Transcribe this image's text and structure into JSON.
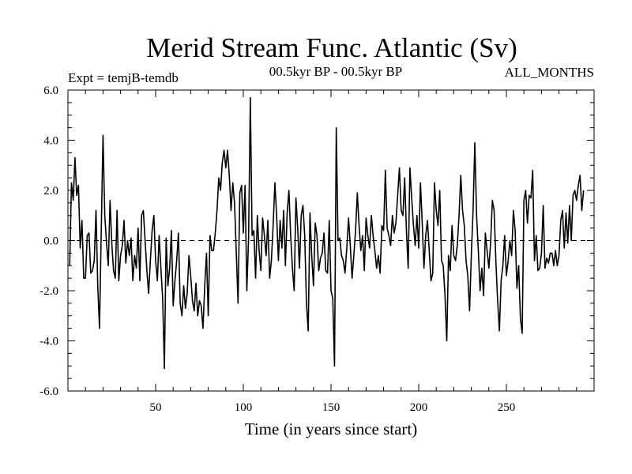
{
  "chart_data": {
    "type": "line",
    "title": "Merid Stream Func. Atlantic (Sv)",
    "subtitle_left": "Expt = temjB-temdb",
    "subtitle_center": "00.5kyr BP - 00.5kyr BP",
    "subtitle_right": "ALL_MONTHS",
    "xlabel": "Time (in years since start)",
    "ylabel": "",
    "xlim": [
      0,
      300
    ],
    "ylim": [
      -6,
      6
    ],
    "x_ticks": [
      50,
      100,
      150,
      200,
      250
    ],
    "x_tick_labels": [
      "50",
      "100",
      "150",
      "200",
      "250"
    ],
    "y_ticks": [
      -6,
      -4,
      -2,
      0,
      2,
      4,
      6
    ],
    "y_tick_labels": [
      "-6.0",
      "-4.0",
      "-2.0",
      "0.0",
      "2.0",
      "4.0",
      "6.0"
    ],
    "zero_line": true,
    "series": [
      {
        "name": "Merid Stream Func.",
        "x_start": 1,
        "x_step": 1,
        "values": [
          -1.0,
          2.3,
          1.6,
          3.3,
          1.8,
          2.2,
          -0.3,
          0.8,
          -1.5,
          -1.5,
          0.2,
          0.3,
          -1.3,
          -1.2,
          -0.8,
          1.2,
          -1.8,
          -3.5,
          0.4,
          4.2,
          1.0,
          -0.1,
          -1.0,
          1.6,
          -0.1,
          -1.2,
          -1.5,
          1.2,
          -1.6,
          -0.6,
          -0.2,
          0.8,
          -0.9,
          0.0,
          -0.6,
          0.1,
          -1.6,
          -0.6,
          -1.1,
          0.5,
          -1.6,
          1.0,
          1.2,
          0.0,
          -1.2,
          -2.1,
          -0.8,
          0.4,
          1.0,
          -0.8,
          -1.6,
          0.2,
          -1.1,
          -2.3,
          -5.1,
          0.1,
          -1.8,
          -1.1,
          0.4,
          -2.6,
          -1.6,
          -0.8,
          0.3,
          -2.5,
          -3.0,
          -1.8,
          -2.7,
          -2.1,
          -0.6,
          -1.4,
          -2.4,
          -2.8,
          -1.7,
          -3.0,
          -2.4,
          -2.6,
          -3.5,
          -1.8,
          -0.5,
          -3.0,
          0.2,
          -0.4,
          -0.4,
          0.3,
          1.2,
          2.5,
          2.0,
          3.1,
          3.6,
          2.9,
          3.6,
          2.6,
          1.2,
          2.3,
          1.5,
          -0.5,
          -2.5,
          1.9,
          2.2,
          0.3,
          2.2,
          -2.0,
          0.1,
          5.7,
          0.2,
          0.4,
          -1.5,
          1.0,
          -0.4,
          -1.2,
          0.9,
          0.2,
          -0.6,
          0.8,
          -1.5,
          -0.8,
          0.6,
          2.3,
          1.0,
          -0.8,
          0.8,
          -0.3,
          1.2,
          -1.0,
          1.1,
          2.0,
          0.2,
          -1.1,
          -2.0,
          1.7,
          0.5,
          -1.1,
          1.0,
          1.4,
          0.2,
          -2.5,
          -3.6,
          1.1,
          -0.6,
          -1.8,
          0.7,
          0.2,
          -1.2,
          -0.7,
          -0.5,
          0.3,
          -1.2,
          -1.3,
          0.8,
          -2.0,
          -2.3,
          -5.0,
          4.5,
          0.0,
          0.1,
          -0.6,
          -0.8,
          -1.3,
          -0.3,
          0.9,
          -0.2,
          -1.5,
          -0.6,
          0.4,
          1.9,
          0.6,
          -0.4,
          0.2,
          -1.2,
          0.9,
          0.2,
          -0.3,
          1.0,
          0.2,
          -0.4,
          -1.1,
          -0.6,
          -1.3,
          0.6,
          0.4,
          2.8,
          0.5,
          0.2,
          -0.2,
          1.0,
          0.3,
          0.7,
          1.8,
          2.9,
          1.2,
          1.0,
          2.5,
          0.4,
          -1.1,
          2.9,
          1.7,
          0.6,
          -0.2,
          1.0,
          -0.3,
          2.3,
          0.7,
          -1.1,
          0.2,
          0.8,
          -0.4,
          -1.6,
          -1.3,
          2.3,
          1.2,
          0.6,
          2.0,
          -0.8,
          -1.0,
          -2.2,
          -4.0,
          -0.6,
          -1.2,
          0.6,
          -0.6,
          -0.8,
          -0.2,
          1.0,
          2.6,
          1.2,
          0.6,
          -0.8,
          -1.4,
          -2.8,
          -0.6,
          1.2,
          3.9,
          1.0,
          -0.4,
          -2.0,
          -1.1,
          -2.2,
          0.3,
          -0.4,
          -1.1,
          -0.1,
          1.6,
          1.2,
          -0.8,
          -2.4,
          -3.6,
          -1.6,
          -1.0,
          0.2,
          -1.4,
          -0.8,
          0.0,
          -0.6,
          1.2,
          0.4,
          -1.9,
          -1.0,
          -3.1,
          -3.7,
          1.6,
          2.0,
          0.7,
          1.8,
          1.7,
          2.8,
          -0.8,
          0.2,
          -1.2,
          -1.1,
          -0.5,
          1.4,
          -1.1,
          -0.7,
          -0.9,
          -0.5,
          -0.5,
          -1.0,
          -0.4,
          -1.0,
          -0.6,
          0.8,
          1.2,
          -0.3,
          1.1,
          -0.1,
          1.4,
          0.0,
          1.8,
          2.0,
          1.6,
          2.2,
          2.6,
          1.2,
          2.0
        ]
      }
    ]
  }
}
